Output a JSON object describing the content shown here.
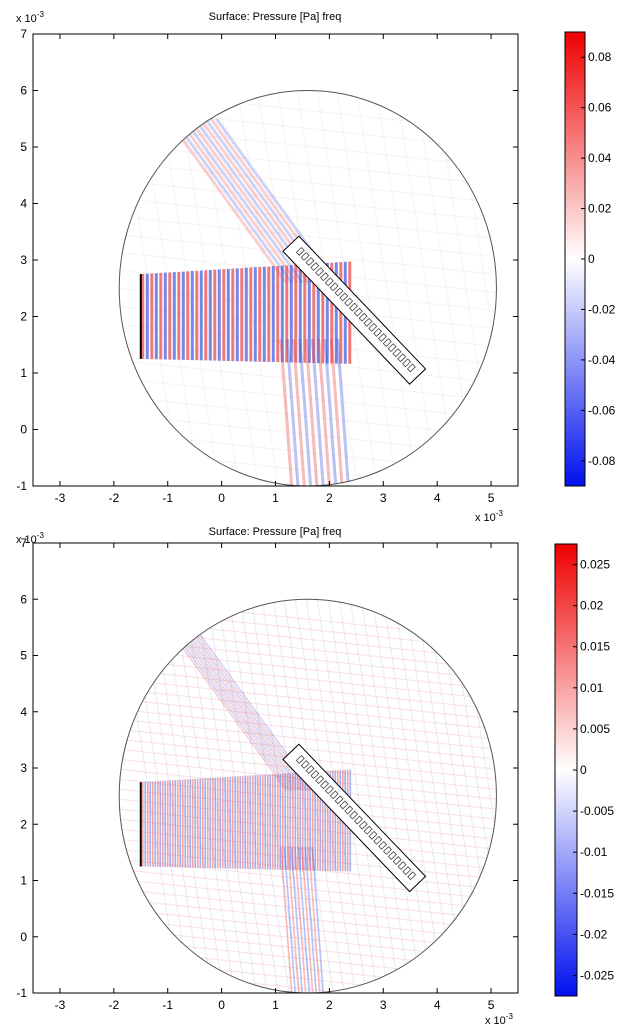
{
  "colors": {
    "positive": "#ff0000",
    "zero": "#ffffff",
    "negative": "#0000ff",
    "axis": "#000000",
    "wave_red": "#e84040",
    "wave_blue": "#3a54e0"
  },
  "chart_data": [
    {
      "type": "heatmap",
      "title": "Surface: Pressure [Pa] freq",
      "x_exponent_label": "x 10",
      "x_exponent": "-3",
      "y_exponent_label": "x 10",
      "y_exponent": "-3",
      "xlim": [
        -3.5,
        5.5
      ],
      "ylim": [
        -1,
        7
      ],
      "x_ticks": [
        -3,
        -2,
        -1,
        0,
        1,
        2,
        3,
        4,
        5
      ],
      "x_tick_labels": [
        "-3",
        "-2",
        "-1",
        "0",
        "1",
        "2",
        "3",
        "4",
        "5"
      ],
      "y_ticks": [
        -1,
        0,
        1,
        2,
        3,
        4,
        5,
        6,
        7
      ],
      "y_tick_labels": [
        "-1",
        "0",
        "1",
        "2",
        "3",
        "4",
        "5",
        "6",
        "7"
      ],
      "domain_circle": {
        "center": [
          1.6,
          2.5
        ],
        "radius": 3.5
      },
      "source_line": {
        "x": -1.5,
        "y_range": [
          1.25,
          2.75
        ]
      },
      "colorbar": {
        "min": -0.09,
        "max": 0.09,
        "ticks": [
          0.08,
          0.06,
          0.04,
          0.02,
          0,
          -0.02,
          -0.04,
          -0.06,
          -0.08
        ],
        "tick_labels": [
          "0.08",
          "0.06",
          "0.04",
          "0.02",
          "0",
          "-0.02",
          "-0.04",
          "-0.06",
          "-0.08"
        ]
      }
    },
    {
      "type": "heatmap",
      "title": "Surface: Pressure [Pa] freq",
      "x_exponent_label": "x 10",
      "x_exponent": "-3",
      "y_exponent_label": "x 10",
      "y_exponent": "-3",
      "xlim": [
        -3.5,
        5.5
      ],
      "ylim": [
        -1,
        7
      ],
      "x_ticks": [
        -3,
        -2,
        -1,
        0,
        1,
        2,
        3,
        4,
        5
      ],
      "x_tick_labels": [
        "-3",
        "-2",
        "-1",
        "0",
        "1",
        "2",
        "3",
        "4",
        "5"
      ],
      "y_ticks": [
        -1,
        0,
        1,
        2,
        3,
        4,
        5,
        6,
        7
      ],
      "y_tick_labels": [
        "-1",
        "0",
        "1",
        "2",
        "3",
        "4",
        "5",
        "6",
        "7"
      ],
      "domain_circle": {
        "center": [
          1.6,
          2.5
        ],
        "radius": 3.5
      },
      "source_line": {
        "x": -1.5,
        "y_range": [
          1.25,
          2.75
        ]
      },
      "colorbar": {
        "min": -0.0275,
        "max": 0.0275,
        "ticks": [
          0.025,
          0.02,
          0.015,
          0.01,
          0.005,
          0,
          -0.005,
          -0.01,
          -0.015,
          -0.02,
          -0.025
        ],
        "tick_labels": [
          "0.025",
          "0.02",
          "0.015",
          "0.01",
          "0.005",
          "0",
          "-0.005",
          "-0.01",
          "-0.015",
          "-0.02",
          "-0.025"
        ]
      }
    }
  ]
}
